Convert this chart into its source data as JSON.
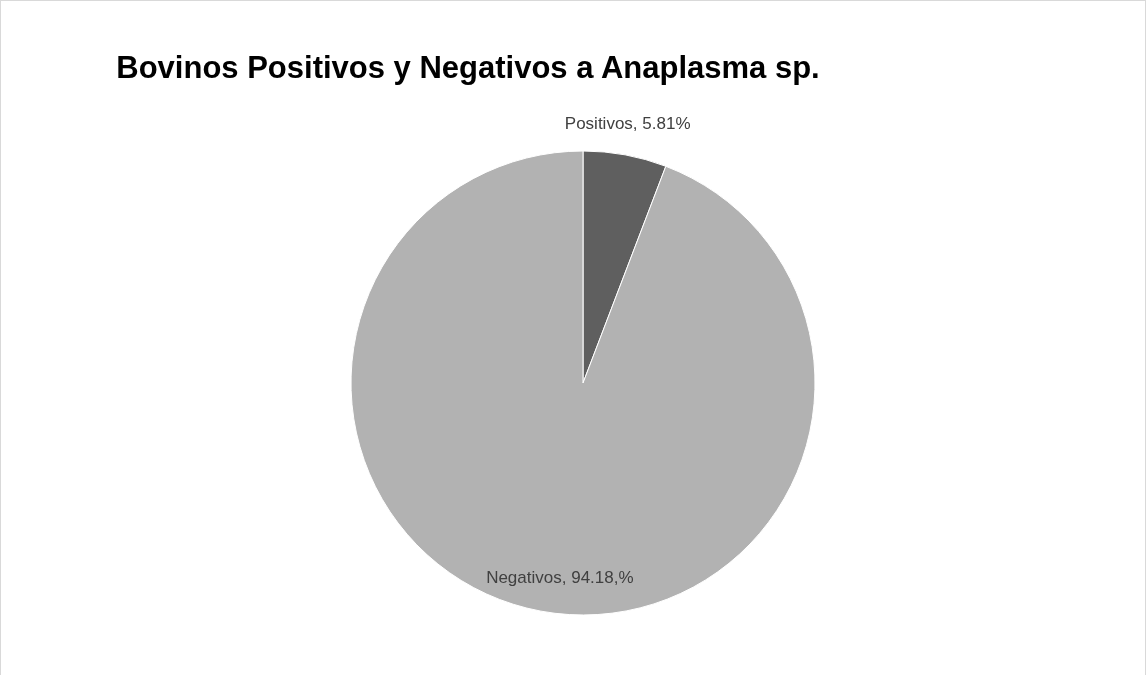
{
  "chart_data": {
    "type": "pie",
    "title": "Bovinos Positivos y Negativos a Anaplasma sp.",
    "categories": [
      "Positivos",
      "Negativos"
    ],
    "values": [
      5.81,
      94.18
    ],
    "value_labels": [
      "5.81%",
      "94.18,%"
    ],
    "colors": [
      "#5f5f5f",
      "#b2b2b2"
    ],
    "legend": false
  }
}
